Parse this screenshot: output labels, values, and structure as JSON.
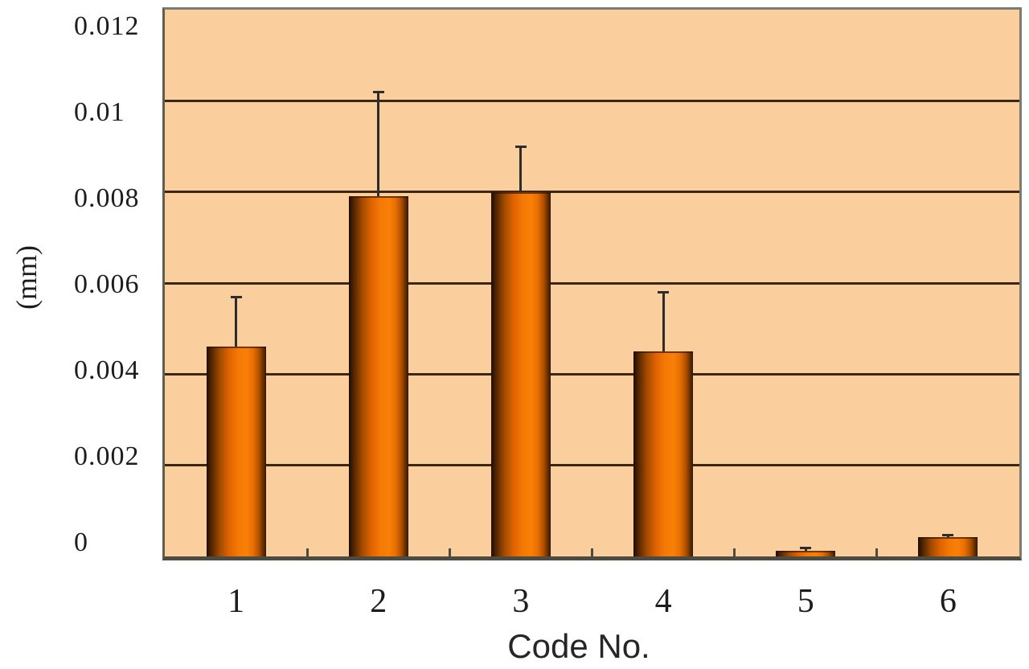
{
  "chart_data": {
    "type": "bar",
    "title": "",
    "xlabel": "Code No.",
    "ylabel": "(mm)",
    "categories": [
      "1",
      "2",
      "3",
      "4",
      "5",
      "6"
    ],
    "values": [
      0.0046,
      0.0079,
      0.008,
      0.0045,
      0.00012,
      0.00042
    ],
    "error_upper": [
      0.0011,
      0.0023,
      0.001,
      0.0013,
      8e-05,
      6e-05
    ],
    "y_ticks": [
      {
        "value": 0.012,
        "label": "0.012"
      },
      {
        "value": 0.01,
        "label": "0.01"
      },
      {
        "value": 0.008,
        "label": "0.008"
      },
      {
        "value": 0.006,
        "label": "0.006"
      },
      {
        "value": 0.004,
        "label": "0.004"
      },
      {
        "value": 0.002,
        "label": "0.002"
      },
      {
        "value": 0,
        "label": "0"
      }
    ],
    "ylim": [
      0,
      0.012
    ],
    "grid": "horizontal",
    "legend": false,
    "colors": {
      "plot_background": "#fbce9e",
      "gridline": "#3a2715",
      "plot_border": "#7d7c72",
      "axis_line": "#4c4b41",
      "error_bar": "#2d2d2d",
      "text": "#1d1d1d",
      "bar_gradient_stops": [
        [
          "#1d0c00",
          0
        ],
        [
          "#512500",
          8
        ],
        [
          "#a04a00",
          22
        ],
        [
          "#e06400",
          38
        ],
        [
          "#f57a05",
          54
        ],
        [
          "#f87f08",
          68
        ],
        [
          "#e96f02",
          78
        ],
        [
          "#b05000",
          88
        ],
        [
          "#5e2b00",
          96
        ],
        [
          "#2f1600",
          100
        ]
      ]
    }
  }
}
